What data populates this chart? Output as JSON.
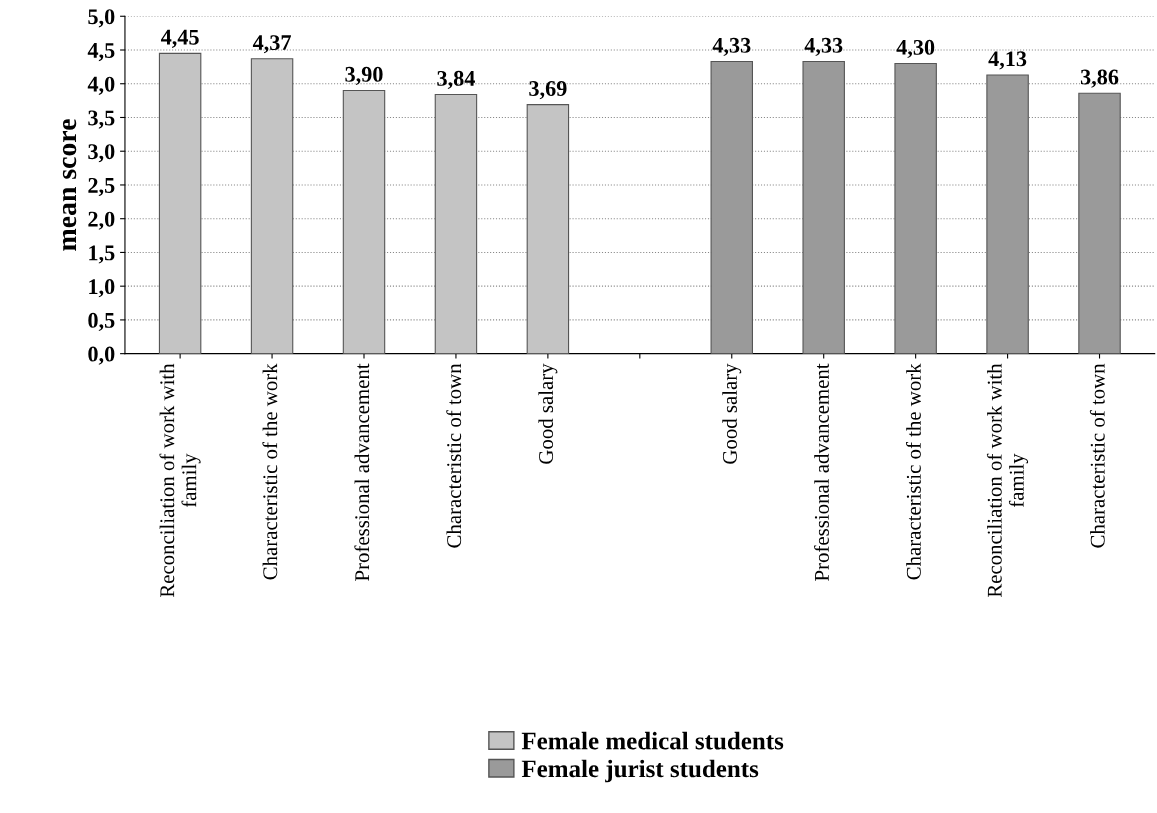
{
  "chart_data": {
    "type": "bar",
    "ylabel": "mean score",
    "categories": [
      "Reconciliation of work with\nfamily",
      "Characteristic of the work",
      "Professional advancement",
      "Characteristic of town",
      "Good salary",
      null,
      "Good salary",
      "Professional advancement",
      "Characteristic of the work",
      "Reconciliation of work with\nfamily",
      "Characteristic of town"
    ],
    "series": [
      {
        "name": "Female medical students",
        "color": "#c4c4c4",
        "values": [
          4.45,
          4.37,
          3.9,
          3.84,
          3.69,
          null,
          null,
          null,
          null,
          null,
          null
        ],
        "value_labels": [
          "4,45",
          "4,37",
          "3,90",
          "3,84",
          "3,69",
          null,
          null,
          null,
          null,
          null,
          null
        ]
      },
      {
        "name": "Female jurist students",
        "color": "#9a9a9a",
        "values": [
          null,
          null,
          null,
          null,
          null,
          null,
          4.33,
          4.33,
          4.3,
          4.13,
          3.86
        ],
        "value_labels": [
          null,
          null,
          null,
          null,
          null,
          null,
          "4,33",
          "4,33",
          "4,30",
          "4,13",
          "3,86"
        ]
      }
    ],
    "ylim": [
      0,
      5
    ],
    "yticks": [
      {
        "value": 0,
        "label": "0,0"
      },
      {
        "value": 0.5,
        "label": "0,5"
      },
      {
        "value": 1,
        "label": "1,0"
      },
      {
        "value": 1.5,
        "label": "1,5"
      },
      {
        "value": 2,
        "label": "2,0"
      },
      {
        "value": 2.5,
        "label": "2,5"
      },
      {
        "value": 3,
        "label": "3,0"
      },
      {
        "value": 3.5,
        "label": "3,5"
      },
      {
        "value": 4,
        "label": "4,0"
      },
      {
        "value": 4.5,
        "label": "4,5"
      },
      {
        "value": 5,
        "label": "5,0"
      }
    ],
    "grid": "y",
    "legend": "bottom"
  }
}
